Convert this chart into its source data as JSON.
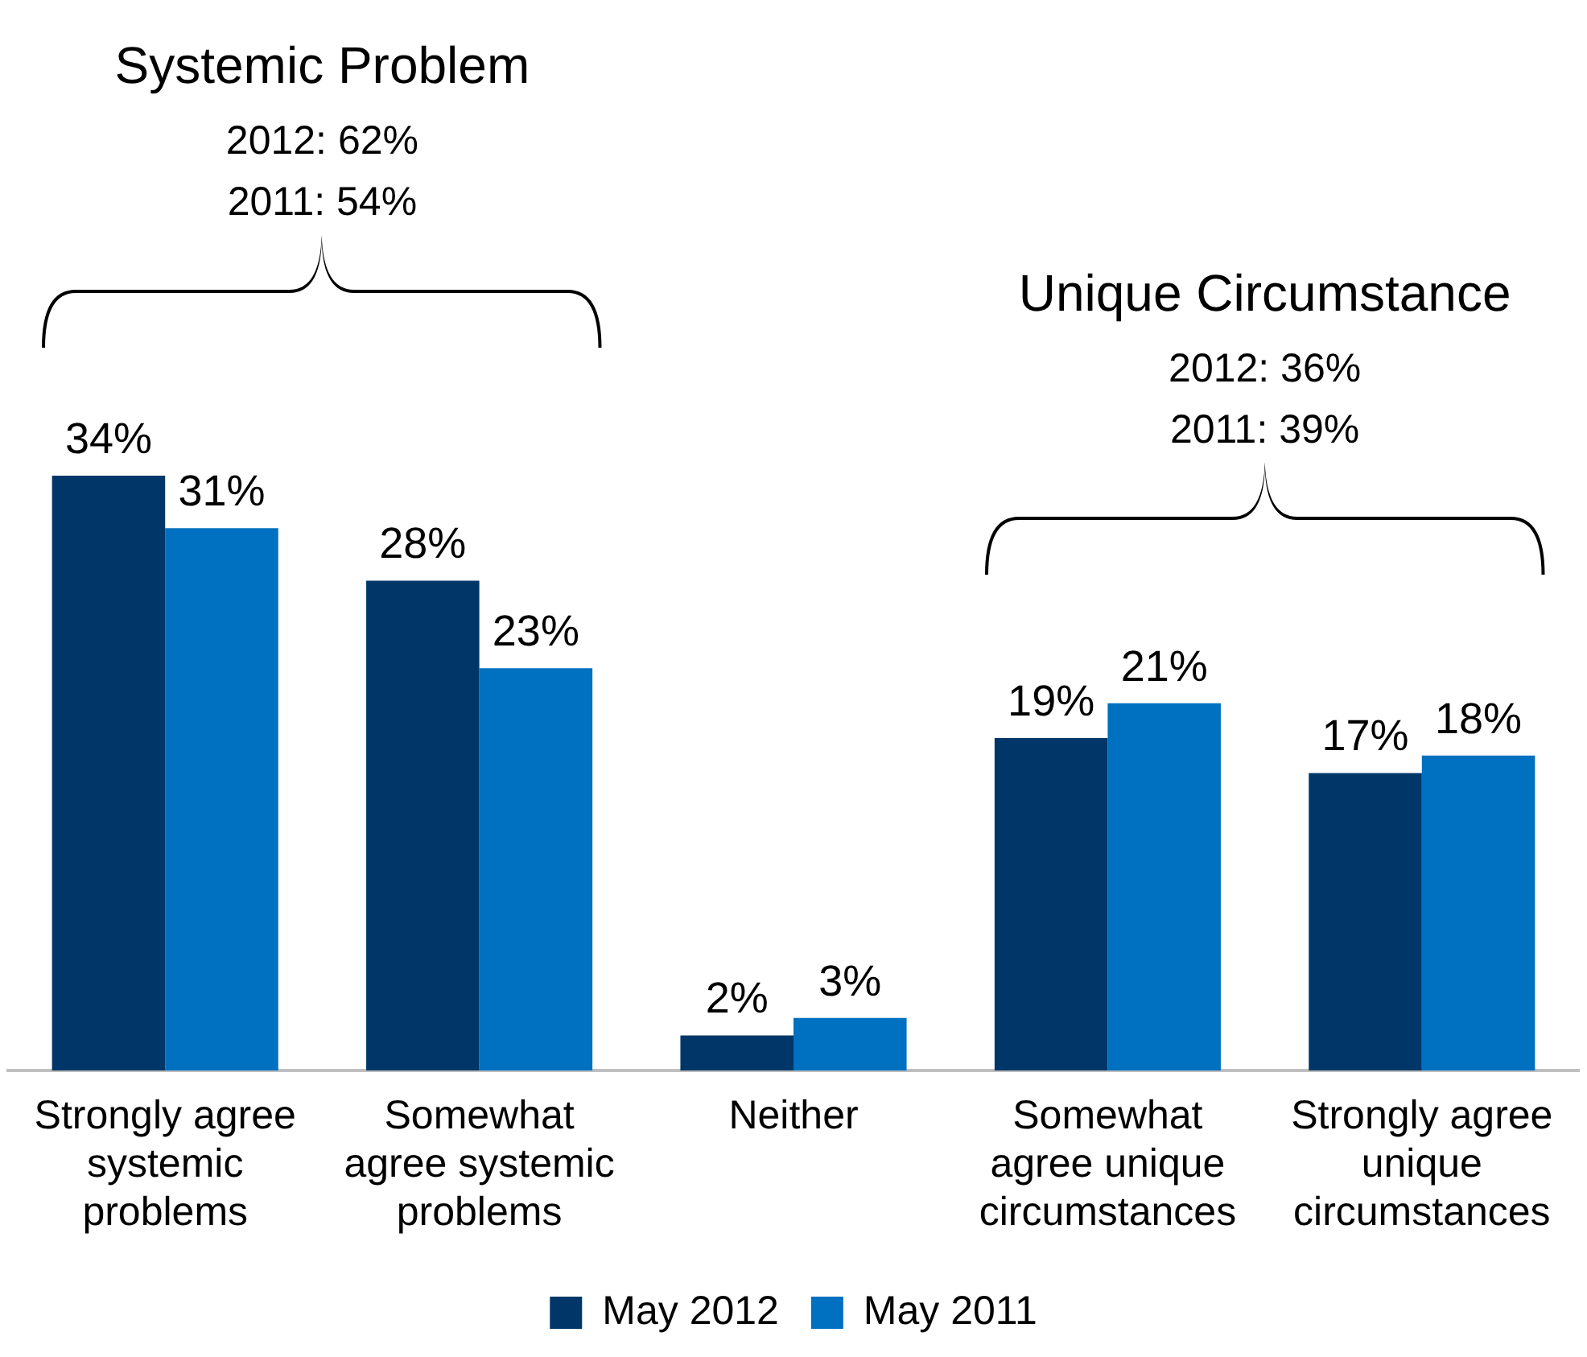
{
  "chart_data": {
    "type": "bar",
    "categories": [
      "Strongly agree systemic problems",
      "Somewhat agree systemic problems",
      "Neither",
      "Somewhat agree unique circumstances",
      "Strongly agree unique circumstances"
    ],
    "series": [
      {
        "name": "May 2012",
        "color": "#003768",
        "values": [
          34,
          28,
          2,
          19,
          17
        ],
        "value_labels": [
          "34%",
          "28%",
          "2%",
          "19%",
          "17%"
        ]
      },
      {
        "name": "May 2011",
        "color": "#0070c0",
        "values": [
          31,
          23,
          3,
          21,
          18
        ],
        "value_labels": [
          "31%",
          "23%",
          "3%",
          "21%",
          "18%"
        ]
      }
    ],
    "legend": "bottom",
    "grid": false,
    "annotations": [
      "Systemic Problem",
      "2012: 62%",
      "2011: 54%",
      "Unique Circumstance",
      "2012: 36%",
      "2011: 39%"
    ]
  }
}
